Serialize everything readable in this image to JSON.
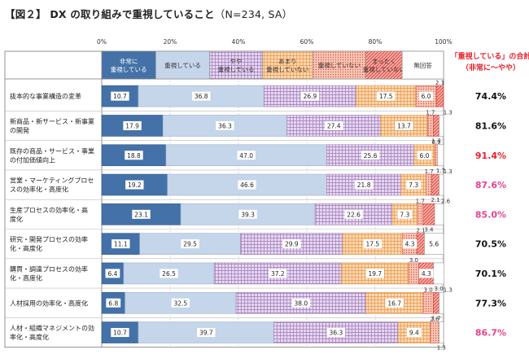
{
  "title": "【図２】 DX の取り組みで重視していること",
  "subtitle": "（N=234, SA）",
  "colors": {
    "very_important": "#4472a8",
    "important": "#c5d5ea",
    "somewhat_important": "#e0d0ec",
    "not_very_important": "#fbd4a8",
    "not_important": "#f7b9a8",
    "not_at_all_important": "#f4a6a0",
    "no_answer": "#ffffff",
    "pink_highlight": "#e8428f",
    "red_highlight": "#e8212b"
  },
  "summary_header": [
    "「重視している」の合計",
    "（非常に～やや）"
  ],
  "chart_data": {
    "type": "bar",
    "orientation": "horizontal",
    "stacked": "percent",
    "xlim": [
      0,
      100
    ],
    "x_ticks": [
      "0%",
      "20%",
      "40%",
      "60%",
      "80%",
      "100%"
    ],
    "legend_placement": "top",
    "categories": [
      [
        "抜本的な事業構造の変革"
      ],
      [
        "新商品・新サービス・新事業",
        "の開発"
      ],
      [
        "既存の商品・サービス・事業",
        "の付加価値向上"
      ],
      [
        "営業・マーケティングプロセ",
        "スの効率化・高度化"
      ],
      [
        "生産プロセスの効率化・高",
        "度化"
      ],
      [
        "研究・開発プロセスの効率",
        "化・高度化"
      ],
      [
        "購買・調達プロセスの効率",
        "化・高度化"
      ],
      [
        "人材採用の効率化・高度化"
      ],
      [
        "人材・組織マネジメントの効",
        "率化・高度化"
      ]
    ],
    "series": [
      {
        "name": [
          "非常に",
          "重視している"
        ],
        "values": [
          10.7,
          17.9,
          18.8,
          19.2,
          23.1,
          11.1,
          6.4,
          6.8,
          10.7
        ]
      },
      {
        "name": [
          "重視している"
        ],
        "values": [
          36.8,
          36.3,
          47.0,
          46.6,
          39.3,
          29.5,
          26.5,
          32.5,
          39.7
        ]
      },
      {
        "name": [
          "やや",
          "重視している"
        ],
        "values": [
          26.9,
          27.4,
          25.6,
          21.8,
          22.6,
          29.9,
          37.2,
          38.0,
          36.3
        ]
      },
      {
        "name": [
          "あまり",
          "重視していない"
        ],
        "values": [
          17.5,
          13.7,
          6.0,
          7.3,
          7.3,
          17.5,
          19.7,
          16.7,
          9.4
        ]
      },
      {
        "name": [
          "重視していない"
        ],
        "values": [
          6.0,
          1.7,
          0.9,
          1.7,
          1.7,
          4.3,
          3.0,
          3.0,
          2.6
        ]
      },
      {
        "name": [
          "まったく",
          "重視していない"
        ],
        "values": [
          2.1,
          1.7,
          0.0,
          2.1,
          3.4,
          2.1,
          4.3,
          1.7,
          0.0
        ]
      },
      {
        "name": [
          "無回答"
        ],
        "values": [
          0.0,
          1.3,
          1.7,
          1.3,
          2.6,
          5.6,
          3.0,
          1.3,
          1.3
        ]
      }
    ],
    "totals": [
      "74.4%",
      "81.6%",
      "91.4%",
      "87.6%",
      "85.0%",
      "70.5%",
      "70.1%",
      "77.3%",
      "86.7%"
    ],
    "total_highlight": [
      "none",
      "none",
      "red",
      "pink",
      "pink",
      "none",
      "none",
      "none",
      "pink"
    ]
  }
}
